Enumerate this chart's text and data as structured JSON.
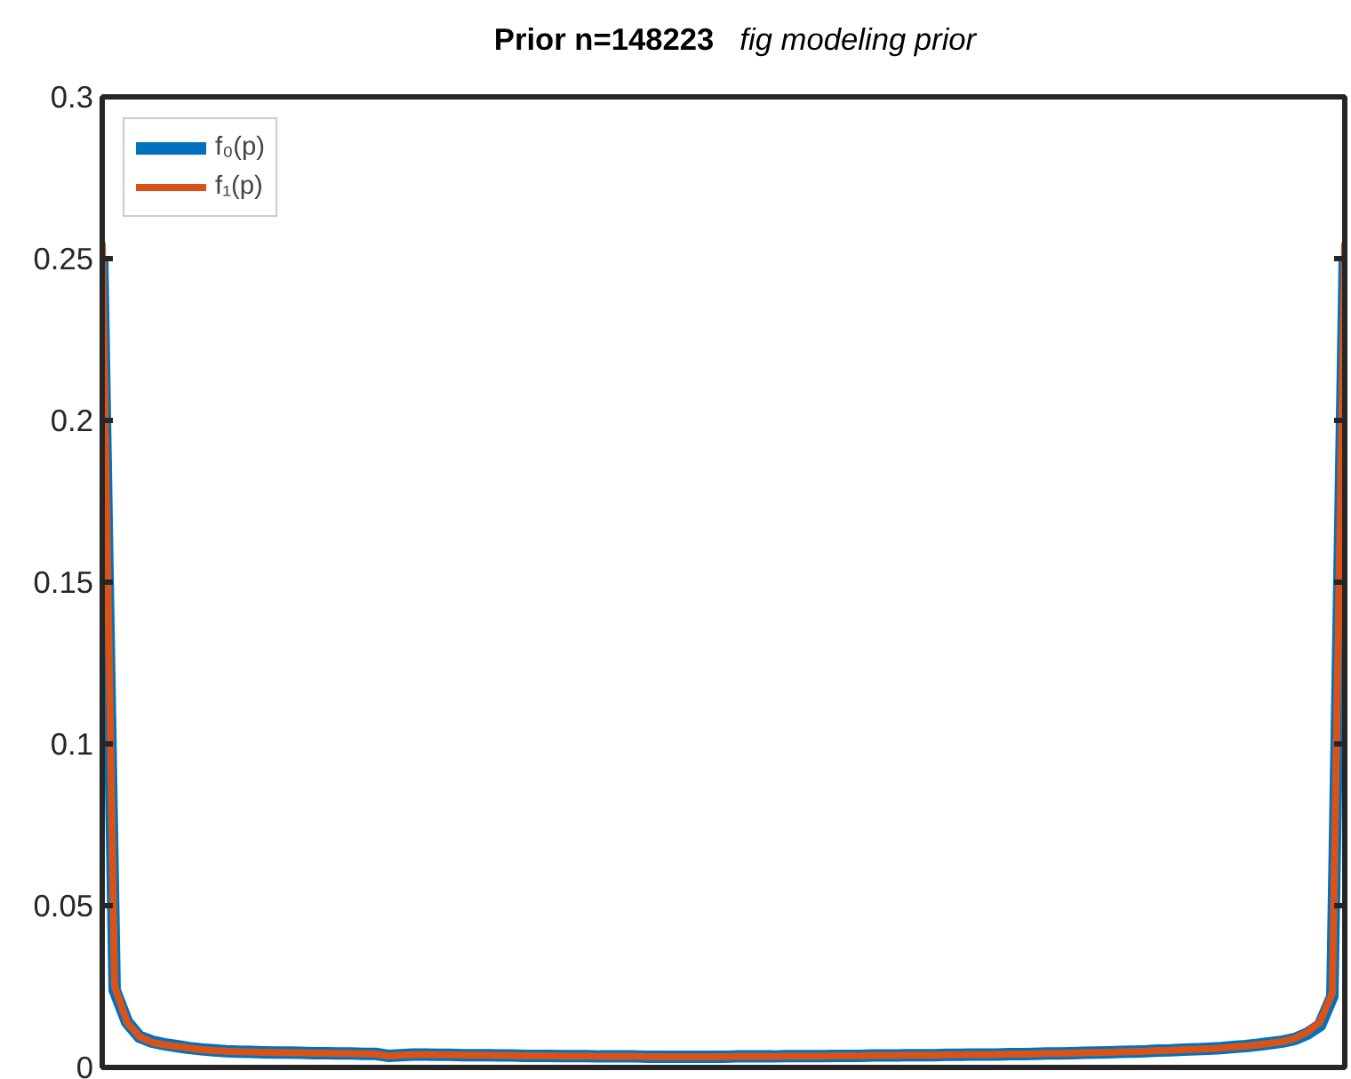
{
  "chart_data": {
    "type": "line",
    "title": "Prior n=148223",
    "subtitle": "fig modeling prior",
    "categories": [
      null,
      null,
      null,
      null,
      null,
      null,
      null,
      null,
      null,
      null,
      null,
      null,
      null,
      null,
      null,
      null,
      null,
      null,
      null,
      null,
      null,
      null,
      null,
      null,
      null,
      null,
      null,
      null,
      null,
      null,
      null,
      null,
      null,
      null,
      null,
      null,
      null,
      null,
      null,
      null,
      null,
      null,
      null,
      null,
      null,
      null,
      null,
      null,
      null,
      null,
      null,
      null,
      null,
      null,
      null,
      null,
      null,
      null,
      null,
      null,
      null,
      null,
      null,
      null,
      null,
      null,
      null,
      null,
      null,
      null,
      null,
      null,
      null,
      null,
      null,
      null,
      null,
      null,
      null,
      null,
      null,
      null,
      null,
      null,
      null,
      null,
      null,
      null,
      null,
      null,
      null,
      null,
      null,
      null,
      null,
      null,
      null,
      null,
      null,
      null,
      null
    ],
    "series": [
      {
        "name": "f₀(p)",
        "color": "#0072bd",
        "values": [
          0.25,
          0.024,
          0.014,
          0.0095,
          0.008,
          0.0072,
          0.0066,
          0.006,
          0.0056,
          0.0053,
          0.005,
          0.0049,
          0.0048,
          0.0047,
          0.0046,
          0.0046,
          0.0045,
          0.0044,
          0.0044,
          0.0043,
          0.0043,
          0.0042,
          0.0042,
          0.0036,
          0.0038,
          0.004,
          0.004,
          0.0039,
          0.0039,
          0.0038,
          0.0038,
          0.0038,
          0.0037,
          0.0037,
          0.0036,
          0.0036,
          0.0036,
          0.0035,
          0.0035,
          0.0035,
          0.0034,
          0.0034,
          0.0034,
          0.0034,
          0.0033,
          0.0033,
          0.0033,
          0.0033,
          0.0033,
          0.0033,
          0.0033,
          0.0034,
          0.0034,
          0.0034,
          0.0034,
          0.0035,
          0.0035,
          0.0035,
          0.0035,
          0.0036,
          0.0036,
          0.0036,
          0.0037,
          0.0037,
          0.0037,
          0.0038,
          0.0038,
          0.0038,
          0.0039,
          0.0039,
          0.004,
          0.004,
          0.004,
          0.0041,
          0.0041,
          0.0042,
          0.0043,
          0.0043,
          0.0044,
          0.0045,
          0.0046,
          0.0047,
          0.0048,
          0.0049,
          0.005,
          0.0052,
          0.0053,
          0.0055,
          0.0056,
          0.0058,
          0.006,
          0.0063,
          0.0066,
          0.007,
          0.0075,
          0.008,
          0.0088,
          0.0105,
          0.013,
          0.022,
          0.25
        ]
      },
      {
        "name": "f₁(p)",
        "color": "#d95319",
        "values": [
          0.255,
          0.025,
          0.014,
          0.0095,
          0.0078,
          0.007,
          0.0065,
          0.006,
          0.0055,
          0.0052,
          0.005,
          0.0049,
          0.0048,
          0.0047,
          0.0046,
          0.0045,
          0.0045,
          0.0044,
          0.0044,
          0.0043,
          0.0043,
          0.0042,
          0.0042,
          0.0035,
          0.0038,
          0.004,
          0.004,
          0.0039,
          0.0039,
          0.0038,
          0.0038,
          0.0038,
          0.0037,
          0.0037,
          0.0036,
          0.0036,
          0.0036,
          0.0035,
          0.0035,
          0.0035,
          0.0034,
          0.0034,
          0.0034,
          0.0034,
          0.0033,
          0.0033,
          0.0033,
          0.0033,
          0.0033,
          0.0033,
          0.0033,
          0.0034,
          0.0034,
          0.0034,
          0.0034,
          0.0035,
          0.0035,
          0.0035,
          0.0035,
          0.0036,
          0.0036,
          0.0036,
          0.0037,
          0.0037,
          0.0037,
          0.0038,
          0.0038,
          0.0038,
          0.0039,
          0.0039,
          0.004,
          0.004,
          0.004,
          0.0041,
          0.0041,
          0.0042,
          0.0043,
          0.0043,
          0.0044,
          0.0045,
          0.0046,
          0.0047,
          0.0048,
          0.0049,
          0.005,
          0.0052,
          0.0053,
          0.0055,
          0.0056,
          0.0058,
          0.006,
          0.0063,
          0.0066,
          0.007,
          0.0075,
          0.008,
          0.009,
          0.011,
          0.014,
          0.023,
          0.255
        ]
      }
    ],
    "ylim": [
      0,
      0.3
    ],
    "yticks": [
      0,
      0.05,
      0.1,
      0.15,
      0.2,
      0.25,
      0.3
    ],
    "tick_labels": "y",
    "legend": "top left",
    "grid": false,
    "marker": "none",
    "line_style": "solid"
  }
}
